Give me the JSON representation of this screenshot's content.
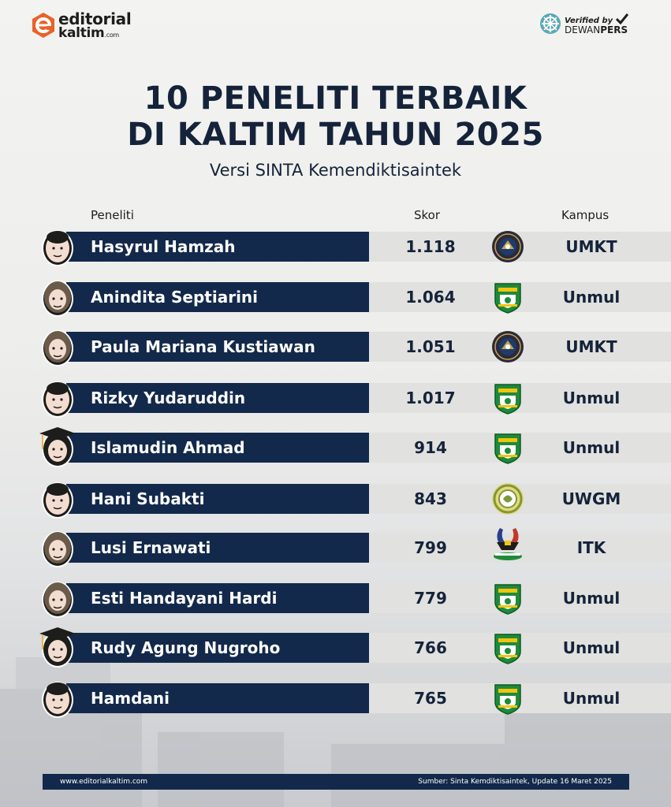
{
  "brand": {
    "name": "editorial",
    "sub": "kaltim",
    "sub_suffix": ".com",
    "accent_color": "#e8622a"
  },
  "verified": {
    "top": "Verified by",
    "bot_regular": "DEWAN",
    "bot_bold": "PERS"
  },
  "title_line1": "10 PENELITI TERBAIK",
  "title_line2": "DI KALTIM TAHUN 2025",
  "subtitle": "Versi SINTA Kemendiktisaintek",
  "columns": {
    "researcher": "Peneliti",
    "score": "Skor",
    "campus": "Kampus"
  },
  "rows": [
    {
      "name": "Hasyrul Hamzah",
      "score": "1.118",
      "campus": "UMKT",
      "logo": "umkt-logo-icon",
      "avatar": "plain"
    },
    {
      "name": "Anindita Septiarini",
      "score": "1.064",
      "campus": "Unmul",
      "logo": "unmul-logo-icon",
      "avatar": "hijab"
    },
    {
      "name": "Paula Mariana Kustiawan",
      "score": "1.051",
      "campus": "UMKT",
      "logo": "umkt-logo-icon",
      "avatar": "hijab"
    },
    {
      "name": "Rizky Yudaruddin",
      "score": "1.017",
      "campus": "Unmul",
      "logo": "unmul-logo-icon",
      "avatar": "plain"
    },
    {
      "name": "Islamudin Ahmad",
      "score": "914",
      "campus": "Unmul",
      "logo": "unmul-logo-icon",
      "avatar": "grad"
    },
    {
      "name": "Hani Subakti",
      "score": "843",
      "campus": "UWGM",
      "logo": "uwgm-logo-icon",
      "avatar": "plain"
    },
    {
      "name": "Lusi Ernawati",
      "score": "799",
      "campus": "ITK",
      "logo": "itk-logo-icon",
      "avatar": "hijab"
    },
    {
      "name": "Esti Handayani Hardi",
      "score": "779",
      "campus": "Unmul",
      "logo": "unmul-logo-icon",
      "avatar": "hijab"
    },
    {
      "name": "Rudy Agung Nugroho",
      "score": "766",
      "campus": "Unmul",
      "logo": "unmul-logo-icon",
      "avatar": "grad"
    },
    {
      "name": "Hamdani",
      "score": "765",
      "campus": "Unmul",
      "logo": "unmul-logo-icon",
      "avatar": "plain"
    }
  ],
  "footer": {
    "website": "www.editorialkaltim.com",
    "source": "Sumber: Sinta Kemdiktisaintek,  Update 16 Maret 2025"
  },
  "colors": {
    "navy": "#13294b",
    "score_bg": "#e1e1df",
    "unmul_green": "#1f8a3a",
    "umkt_dark": "#2a2a3a",
    "uwgm_green": "#7a9a3a"
  }
}
